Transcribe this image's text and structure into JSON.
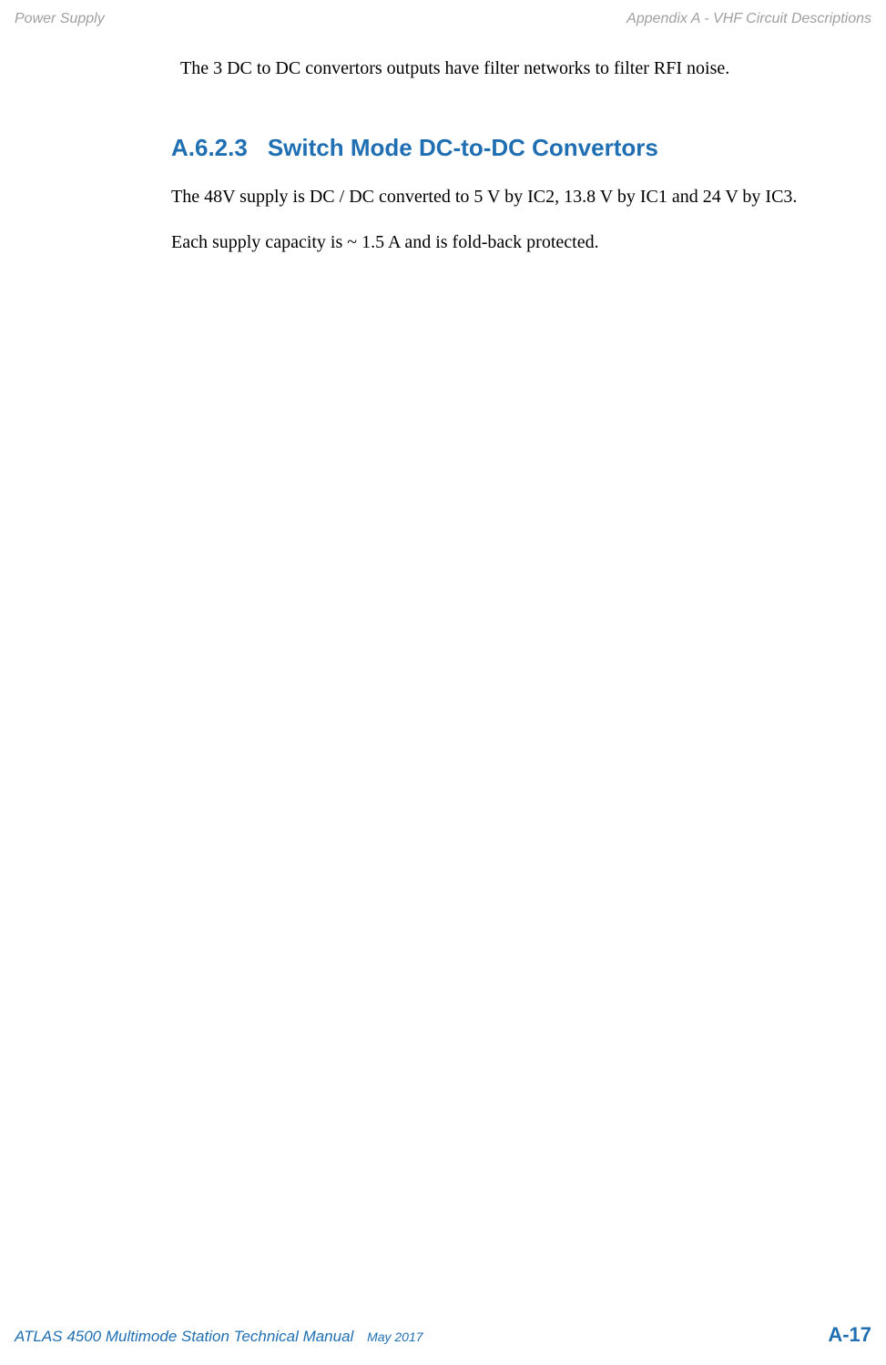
{
  "header": {
    "left": "Power Supply",
    "right": "Appendix A - VHF Circuit Descriptions"
  },
  "content": {
    "intro": "The 3 DC to DC convertors outputs have filter networks to filter RFI noise.",
    "section_number": "A.6.2.3",
    "section_title": "Switch Mode DC-to-DC Convertors",
    "paragraph1": "The 48V supply is DC / DC converted to 5 V by IC2, 13.8 V by IC1 and 24 V by IC3.",
    "paragraph2": "Each supply capacity is ~ 1.5 A and is fold-back protected."
  },
  "footer": {
    "manual_title": "ATLAS 4500 Multimode Station Technical Manual",
    "date": "May 2017",
    "page_number": "A-17"
  }
}
